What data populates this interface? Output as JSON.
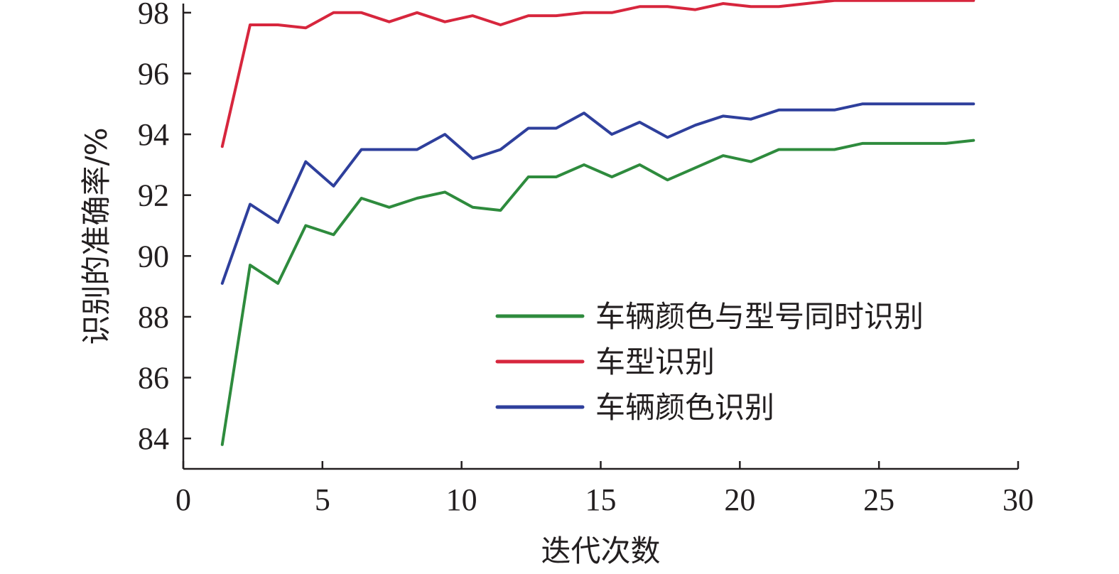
{
  "chart_data": {
    "type": "line",
    "xlabel": "迭代次数",
    "ylabel": "识别的准确率/%",
    "xlim": [
      0,
      30
    ],
    "ylim": [
      83,
      98.3
    ],
    "xticks": [
      0,
      5,
      10,
      15,
      20,
      25,
      30
    ],
    "yticks": [
      84,
      86,
      88,
      90,
      92,
      94,
      96,
      98
    ],
    "legend_position": "bottom-right",
    "grid": false,
    "x": [
      1.4,
      2.4,
      3.4,
      4.4,
      5.4,
      6.4,
      7.4,
      8.4,
      9.4,
      10.4,
      11.4,
      12.4,
      13.4,
      14.4,
      15.4,
      16.4,
      17.4,
      18.4,
      19.4,
      20.4,
      21.4,
      22.4,
      23.4,
      24.4,
      25.4,
      26.4,
      27.4,
      28.4
    ],
    "series": [
      {
        "name": "车辆颜色与型号同时识别",
        "color": "#2e8b3d",
        "values": [
          83.8,
          89.7,
          89.1,
          91.0,
          90.7,
          91.9,
          91.6,
          91.9,
          92.1,
          91.6,
          91.5,
          92.6,
          92.6,
          93.0,
          92.6,
          93.0,
          92.5,
          92.9,
          93.3,
          93.1,
          93.5,
          93.5,
          93.5,
          93.7,
          93.7,
          93.7,
          93.7,
          93.8
        ]
      },
      {
        "name": "车型识别",
        "color": "#d7263d",
        "values": [
          93.6,
          97.6,
          97.6,
          97.5,
          98.0,
          98.0,
          97.7,
          98.0,
          97.7,
          97.9,
          97.6,
          97.9,
          97.9,
          98.0,
          98.0,
          98.2,
          98.2,
          98.1,
          98.3,
          98.2,
          98.2,
          98.3,
          98.4,
          98.4,
          98.4,
          98.4,
          98.4,
          98.4
        ]
      },
      {
        "name": "车辆颜色识别",
        "color": "#2e3f9c",
        "values": [
          89.1,
          91.7,
          91.1,
          93.1,
          92.3,
          93.5,
          93.5,
          93.5,
          94.0,
          93.2,
          93.5,
          94.2,
          94.2,
          94.7,
          94.0,
          94.4,
          93.9,
          94.3,
          94.6,
          94.5,
          94.8,
          94.8,
          94.8,
          95.0,
          95.0,
          95.0,
          95.0,
          95.0
        ]
      }
    ]
  }
}
